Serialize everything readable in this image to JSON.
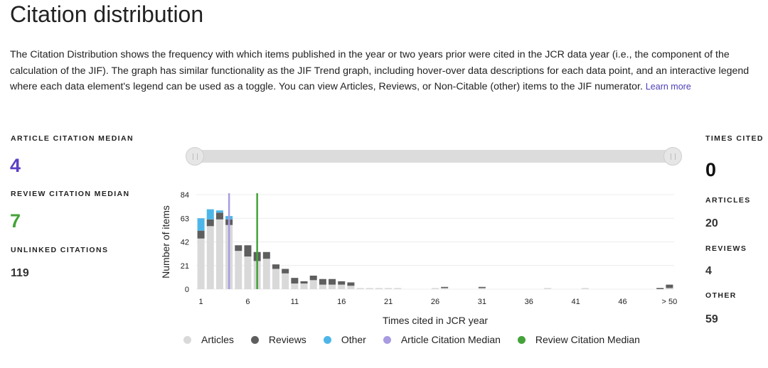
{
  "page": {
    "title": "Citation distribution",
    "description": "The Citation Distribution shows the frequency with which items published in the year or two years prior were cited in the JCR data year (i.e., the component of the calculation of the JIF). The graph has similar functionality as the JIF Trend graph, including hover-over data descriptions for each data point, and an interactive legend where each data element's legend can be used as a toggle. You can view Articles, Reviews, or Non-Citable (other) items to the JIF numerator.",
    "learn_more": "Learn more"
  },
  "left_stats": {
    "article_median_label": "ARTICLE CITATION MEDIAN",
    "article_median_value": "4",
    "review_median_label": "REVIEW CITATION MEDIAN",
    "review_median_value": "7",
    "unlinked_label": "UNLINKED CITATIONS",
    "unlinked_value": "119"
  },
  "right_stats": {
    "times_cited_label": "TIMES CITED",
    "times_cited_value": "0",
    "articles_label": "ARTICLES",
    "articles_value": "20",
    "reviews_label": "REVIEWS",
    "reviews_value": "4",
    "other_label": "OTHER",
    "other_value": "59"
  },
  "slider": {
    "range": [
      0,
      1
    ]
  },
  "colors": {
    "articles": "#d9d9d9",
    "reviews": "#5e5e5e",
    "other": "#4db6e8",
    "article_median": "#a99be0",
    "review_median": "#44a33a",
    "article_median_text": "#5b3fc4",
    "review_median_text": "#44a33a"
  },
  "chart_data": {
    "type": "bar",
    "stacked": true,
    "xlabel": "Times cited in JCR year",
    "ylabel": "Number of items",
    "ylim": [
      0,
      84
    ],
    "yticks": [
      0,
      21,
      42,
      63,
      84
    ],
    "xticks": [
      "1",
      "6",
      "11",
      "16",
      "21",
      "26",
      "31",
      "36",
      "41",
      "46",
      "> 50"
    ],
    "categories": [
      "1",
      "2",
      "3",
      "4",
      "5",
      "6",
      "7",
      "8",
      "9",
      "10",
      "11",
      "12",
      "13",
      "14",
      "15",
      "16",
      "17",
      "18",
      "19",
      "20",
      "21",
      "22",
      "23",
      "24",
      "25",
      "26",
      "27",
      "28",
      "29",
      "30",
      "31",
      "32",
      "33",
      "34",
      "35",
      "36",
      "37",
      "38",
      "39",
      "40",
      "41",
      "42",
      "43",
      "44",
      "45",
      "46",
      "47",
      "48",
      "49",
      "50",
      "> 50"
    ],
    "series": [
      {
        "name": "Articles",
        "values": [
          45,
          56,
          62,
          57,
          34,
          29,
          25,
          27,
          18,
          14,
          5,
          5,
          8,
          4,
          4,
          4,
          3,
          1,
          1,
          1,
          1,
          1,
          0,
          0,
          0,
          1,
          1,
          0,
          0,
          0,
          1,
          0,
          0,
          0,
          0,
          0,
          0,
          1,
          0,
          0,
          0,
          1,
          0,
          0,
          0,
          0,
          0,
          0,
          0,
          0,
          1
        ]
      },
      {
        "name": "Reviews",
        "values": [
          7,
          6,
          6,
          5,
          5,
          10,
          8,
          6,
          4,
          4,
          5,
          2,
          4,
          5,
          5,
          3,
          3,
          0,
          0,
          0,
          0,
          0,
          0,
          0,
          0,
          0,
          1,
          0,
          0,
          0,
          1,
          0,
          0,
          0,
          0,
          0,
          0,
          0,
          0,
          0,
          0,
          0,
          0,
          0,
          0,
          0,
          0,
          0,
          0,
          1,
          3
        ]
      },
      {
        "name": "Other",
        "values": [
          11,
          9,
          2,
          3,
          0,
          0,
          0,
          0,
          0,
          0,
          0,
          0,
          0,
          0,
          0,
          0,
          0,
          0,
          0,
          0,
          0,
          0,
          0,
          0,
          0,
          0,
          0,
          0,
          0,
          0,
          0,
          0,
          0,
          0,
          0,
          0,
          0,
          0,
          0,
          0,
          0,
          0,
          0,
          0,
          0,
          0,
          0,
          0,
          0,
          0,
          0
        ]
      }
    ],
    "medians": [
      {
        "name": "Article Citation Median",
        "value": 4
      },
      {
        "name": "Review Citation Median",
        "value": 7
      }
    ],
    "legend": [
      "Articles",
      "Reviews",
      "Other",
      "Article Citation Median",
      "Review Citation Median"
    ],
    "legend_position": "bottom",
    "grid": true
  }
}
